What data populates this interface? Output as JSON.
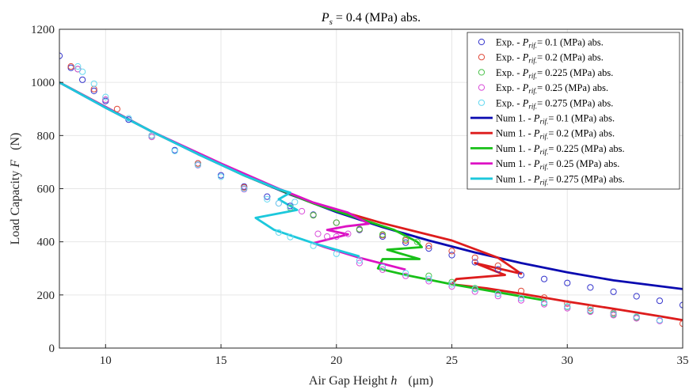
{
  "chart_data": {
    "type": "line",
    "title": "Ps = 0.4 (MPa) abs.",
    "title_parts": {
      "symbol": "P",
      "sub": "s",
      "rest": " = 0.4 (MPa) abs."
    },
    "xlabel": "Air Gap Height h  (μm)",
    "xlabel_parts": {
      "text": "Air Gap Height ",
      "var": "h",
      "unit": "(μm)"
    },
    "ylabel": "Load Capacity F  (N)",
    "ylabel_parts": {
      "text": "Load Capacity ",
      "var": "F",
      "unit": "(N)"
    },
    "xlim": [
      8,
      35
    ],
    "ylim": [
      0,
      1200
    ],
    "xticks": [
      10,
      15,
      20,
      25,
      30,
      35
    ],
    "yticks": [
      0,
      200,
      400,
      600,
      800,
      1000,
      1200
    ],
    "grid": true,
    "legend_position": "top-right",
    "series": [
      {
        "name": "Exp. - Prif.= 0.1 (MPa) abs.",
        "legend_parts": {
          "pre": "Exp. - ",
          "sym": "P",
          "sub": "rif.",
          "post": "= 0.1 (MPa) abs."
        },
        "kind": "markers",
        "color": "#3333cc",
        "x": [
          8.0,
          8.5,
          9.0,
          9.5,
          10.0,
          11.0,
          12.0,
          13.0,
          14.0,
          15.0,
          16.0,
          17.0,
          18.0,
          19.0,
          20.0,
          21.0,
          22.0,
          23.0,
          24.0,
          25.0,
          26.0,
          27.0,
          28.0,
          29.0,
          30.0,
          31.0,
          32.0,
          33.0,
          34.0,
          35.0
        ],
        "y": [
          1100,
          1055,
          1010,
          968,
          930,
          860,
          800,
          745,
          695,
          650,
          608,
          570,
          535,
          502,
          472,
          445,
          420,
          397,
          375,
          350,
          323,
          296,
          275,
          260,
          245,
          228,
          212,
          195,
          178,
          162
        ]
      },
      {
        "name": "Exp. - Prif.= 0.2 (MPa) abs.",
        "legend_parts": {
          "pre": "Exp. - ",
          "sym": "P",
          "sub": "rif.",
          "post": "= 0.2 (MPa) abs."
        },
        "kind": "markers",
        "color": "#e04a3a",
        "x": [
          8.5,
          9.5,
          10.5,
          12.0,
          14.0,
          16.0,
          18.0,
          19.0,
          20.0,
          21.0,
          22.0,
          23.0,
          24.0,
          25.0,
          26.0,
          27.0,
          28.0,
          29.0,
          30.0,
          31.0,
          32.0,
          33.0,
          34.0,
          35.0
        ],
        "y": [
          1060,
          975,
          900,
          800,
          695,
          605,
          530,
          500,
          472,
          447,
          425,
          405,
          385,
          365,
          340,
          310,
          215,
          190,
          168,
          150,
          133,
          118,
          104,
          92
        ]
      },
      {
        "name": "Exp. - Prif.= 0.225 (MPa) abs.",
        "legend_parts": {
          "pre": "Exp. - ",
          "sym": "P",
          "sub": "rif.",
          "post": "= 0.225 (MPa) abs."
        },
        "kind": "markers",
        "color": "#4cc24c",
        "x": [
          8.8,
          10.0,
          12.0,
          14.0,
          16.0,
          18.0,
          19.0,
          20.0,
          21.0,
          22.0,
          23.0,
          23.5,
          24.0,
          25.0,
          26.0,
          27.0,
          28.0,
          29.0,
          30.0,
          31.0,
          32.0,
          33.0,
          34.0
        ],
        "y": [
          1050,
          935,
          795,
          690,
          600,
          528,
          500,
          472,
          448,
          428,
          410,
          400,
          272,
          248,
          225,
          205,
          188,
          170,
          155,
          140,
          127,
          115,
          104
        ]
      },
      {
        "name": "Exp. - Prif.= 0.25 (MPa) abs.",
        "legend_parts": {
          "pre": "Exp. - ",
          "sym": "P",
          "sub": "rif.",
          "post": "= 0.25 (MPa) abs."
        },
        "kind": "markers",
        "color": "#d94ad9",
        "x": [
          8.8,
          10.0,
          12.0,
          14.0,
          16.0,
          17.5,
          18.5,
          19.2,
          19.6,
          20.0,
          20.5,
          21.0,
          22.0,
          23.0,
          24.0,
          25.0,
          26.0,
          27.0,
          28.0,
          29.0,
          30.0,
          31.0,
          32.0,
          33.0,
          34.0
        ],
        "y": [
          1050,
          935,
          795,
          688,
          598,
          545,
          515,
          430,
          420,
          420,
          430,
          320,
          295,
          272,
          252,
          232,
          213,
          196,
          180,
          165,
          150,
          137,
          124,
          112,
          102
        ]
      },
      {
        "name": "Exp. - Prif.= 0.275 (MPa) abs.",
        "legend_parts": {
          "pre": "Exp. - ",
          "sym": "P",
          "sub": "rif.",
          "post": "= 0.275 (MPa) abs."
        },
        "kind": "markers",
        "color": "#66d9f0",
        "x": [
          8.8,
          9.0,
          9.5,
          10.0,
          11.0,
          12.0,
          13.0,
          14.0,
          15.0,
          16.0,
          17.0,
          17.5,
          18.0,
          18.2,
          17.5,
          18.0,
          19.0,
          20.0,
          21.0,
          22.0,
          23.0,
          24.0,
          25.0,
          26.0,
          27.0,
          28.0,
          29.0,
          30.0,
          31.0,
          32.0,
          33.0,
          34.0
        ],
        "y": [
          1060,
          1040,
          995,
          945,
          865,
          800,
          742,
          690,
          645,
          600,
          560,
          545,
          530,
          550,
          435,
          418,
          385,
          355,
          330,
          305,
          282,
          260,
          240,
          222,
          205,
          188,
          172,
          157,
          143,
          130,
          118,
          105
        ]
      },
      {
        "name": "Num 1. - Prif.= 0.1 (MPa) abs.",
        "legend_parts": {
          "pre": "Num 1. - ",
          "sym": "P",
          "sub": "rif.",
          "post": "= 0.1 (MPa) abs."
        },
        "kind": "line",
        "color": "#0a0ab0",
        "x": [
          8,
          10,
          12,
          14,
          16,
          18,
          20,
          22,
          24,
          26,
          28,
          30,
          32,
          35
        ],
        "y": [
          1000,
          905,
          815,
          730,
          650,
          578,
          512,
          455,
          405,
          360,
          320,
          285,
          255,
          222
        ]
      },
      {
        "name": "Num 1. - Prif.= 0.2 (MPa) abs.",
        "legend_parts": {
          "pre": "Num 1. - ",
          "sym": "P",
          "sub": "rif.",
          "post": "= 0.2 (MPa) abs."
        },
        "kind": "line",
        "color": "#dd1c1c",
        "x": [
          8,
          12,
          16,
          19,
          22,
          25,
          27,
          28,
          26,
          27.3,
          25.2,
          25.0,
          26.5,
          28,
          30,
          32,
          34,
          35
        ],
        "y": [
          1000,
          815,
          650,
          545,
          470,
          405,
          340,
          280,
          320,
          275,
          260,
          240,
          225,
          205,
          175,
          148,
          120,
          105
        ]
      },
      {
        "name": "Num 1. - Prif.= 0.225 (MPa) abs.",
        "legend_parts": {
          "pre": "Num 1. - ",
          "sym": "P",
          "sub": "rif.",
          "post": "= 0.225 (MPa) abs."
        },
        "kind": "line",
        "color": "#18c018",
        "x": [
          8,
          12,
          16,
          19,
          21,
          22.5,
          23.5,
          23.7,
          22.2,
          23.6,
          22.0,
          21.8,
          23,
          25,
          27,
          29
        ],
        "y": [
          1000,
          815,
          650,
          545,
          487,
          445,
          400,
          380,
          370,
          335,
          335,
          300,
          275,
          240,
          210,
          180
        ]
      },
      {
        "name": "Num 1. - Prif.= 0.25 (MPa) abs.",
        "legend_parts": {
          "pre": "Num 1. - ",
          "sym": "P",
          "sub": "rif.",
          "post": "= 0.25 (MPa) abs."
        },
        "kind": "line",
        "color": "#dd12c4",
        "x": [
          8,
          12,
          15,
          17.5,
          19,
          20.5,
          21.4,
          20.4,
          19.6,
          20.5,
          19.0,
          19.5,
          21,
          23
        ],
        "y": [
          1000,
          815,
          695,
          600,
          548,
          510,
          468,
          458,
          445,
          428,
          395,
          380,
          340,
          295
        ]
      },
      {
        "name": "Num 1. - Prif.= 0.275 (MPa) abs.",
        "legend_parts": {
          "pre": "Num 1. - ",
          "sym": "P",
          "sub": "rif.",
          "post": "= 0.275 (MPa) abs."
        },
        "kind": "line",
        "color": "#1cc8dc",
        "x": [
          8,
          10,
          12,
          14,
          16,
          17.5,
          18.0,
          17.5,
          18.3,
          16.5,
          17.3,
          19,
          21
        ],
        "y": [
          1000,
          905,
          815,
          730,
          650,
          598,
          585,
          560,
          520,
          490,
          445,
          395,
          345
        ]
      }
    ]
  }
}
